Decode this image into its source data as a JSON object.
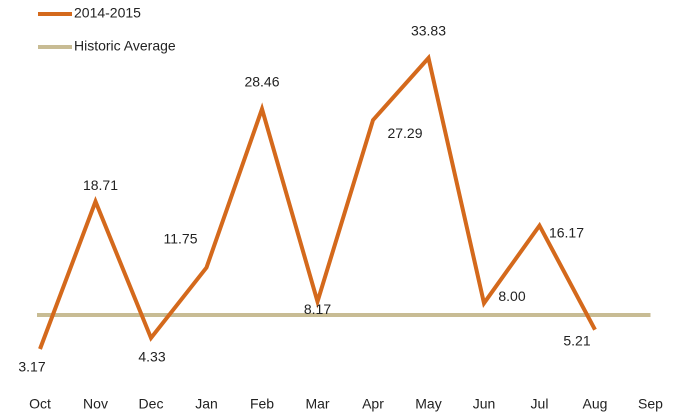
{
  "chart_data": {
    "type": "line",
    "categories": [
      "Oct",
      "Nov",
      "Dec",
      "Jan",
      "Feb",
      "Mar",
      "Apr",
      "May",
      "Jun",
      "Jul",
      "Aug",
      "Sep"
    ],
    "series": [
      {
        "name": "2014-2015",
        "color": "#d4691c",
        "values": [
          3.17,
          18.71,
          4.33,
          11.75,
          28.46,
          8.17,
          27.29,
          33.83,
          8.0,
          16.17,
          5.21,
          null
        ],
        "value_labels": [
          "3.17",
          "18.71",
          "4.33",
          "11.75",
          "28.46",
          "8.17",
          "27.29",
          "33.83",
          "8.00",
          "16.17",
          "5.21",
          null
        ]
      },
      {
        "name": "Historic Average",
        "color": "#c8bc94",
        "values": [
          6.75,
          6.75,
          6.75,
          6.75,
          6.75,
          6.75,
          6.75,
          6.75,
          6.75,
          6.75,
          6.75,
          6.75
        ]
      }
    ],
    "legend": "top-left"
  }
}
